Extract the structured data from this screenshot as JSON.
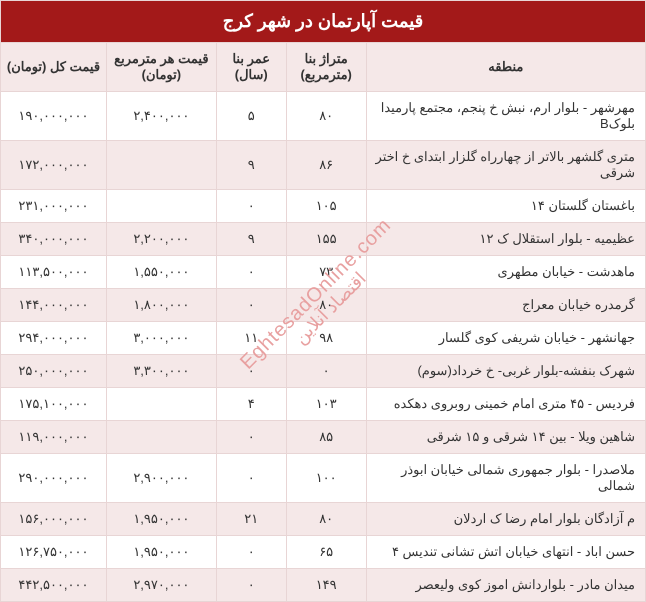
{
  "title": "قیمت آپارتمان در شهر کرج",
  "headers": {
    "region": "منطقه",
    "area": "متراژ بنا (مترمربع)",
    "age": "عمر بنا (سال)",
    "price_per_sqm": "قیمت هر مترمربع (تومان)",
    "total_price": "قیمت کل (تومان)"
  },
  "rows": [
    {
      "region": "مهرشهر - بلوار ارم، نبش خ پنجم، مجتمع پارمیدا بلوکB",
      "area": "۸۰",
      "age": "۵",
      "ppsm": "۲,۴۰۰,۰۰۰",
      "total": "۱۹۰,۰۰۰,۰۰۰"
    },
    {
      "region": "متری گلشهر بالاتر از چهارراه گلزار ابتدای خ اختر شرقی",
      "area": "۸۶",
      "age": "۹",
      "ppsm": "",
      "total": "۱۷۲,۰۰۰,۰۰۰"
    },
    {
      "region": "باغستان گلستان ۱۴",
      "area": "۱۰۵",
      "age": "۰",
      "ppsm": "",
      "total": "۲۳۱,۰۰۰,۰۰۰"
    },
    {
      "region": "عظیمیه - بلوار استقلال ک ۱۲",
      "area": "۱۵۵",
      "age": "۹",
      "ppsm": "۲,۲۰۰,۰۰۰",
      "total": "۳۴۰,۰۰۰,۰۰۰"
    },
    {
      "region": "ماهدشت - خیابان مطهری",
      "area": "۷۳",
      "age": "۰",
      "ppsm": "۱,۵۵۰,۰۰۰",
      "total": "۱۱۳,۵۰۰,۰۰۰"
    },
    {
      "region": "گرمدره خیابان معراج",
      "area": "۸۰",
      "age": "۰",
      "ppsm": "۱,۸۰۰,۰۰۰",
      "total": "۱۴۴,۰۰۰,۰۰۰"
    },
    {
      "region": "جهانشهر - خیابان شریفی کوی گلسار",
      "area": "۹۸",
      "age": "۱۱",
      "ppsm": "۳,۰۰۰,۰۰۰",
      "total": "۲۹۴,۰۰۰,۰۰۰"
    },
    {
      "region": "شهرک بنفشه-بلوار غربی- خ خرداد(سوم)",
      "area": "۰",
      "age": "۰",
      "ppsm": "۳,۳۰۰,۰۰۰",
      "total": "۲۵۰,۰۰۰,۰۰۰"
    },
    {
      "region": "فردیس - ۴۵ متری امام خمینی روبروی دهکده",
      "area": "۱۰۳",
      "age": "۴",
      "ppsm": "",
      "total": "۱۷۵,۱۰۰,۰۰۰"
    },
    {
      "region": "شاهین ویلا - بین ۱۴ شرقی و ۱۵ شرقی",
      "area": "۸۵",
      "age": "۰",
      "ppsm": "",
      "total": "۱۱۹,۰۰۰,۰۰۰"
    },
    {
      "region": "ملاصدرا - بلوار جمهوری شمالی خیابان ابوذر شمالی",
      "area": "۱۰۰",
      "age": "۰",
      "ppsm": "۲,۹۰۰,۰۰۰",
      "total": "۲۹۰,۰۰۰,۰۰۰"
    },
    {
      "region": "م آزادگان بلوار امام رضا ک اردلان",
      "area": "۸۰",
      "age": "۲۱",
      "ppsm": "۱,۹۵۰,۰۰۰",
      "total": "۱۵۶,۰۰۰,۰۰۰"
    },
    {
      "region": "حسن اباد - انتهای خیابان اتش تشانی تندیس ۴",
      "area": "۶۵",
      "age": "۰",
      "ppsm": "۱,۹۵۰,۰۰۰",
      "total": "۱۲۶,۷۵۰,۰۰۰"
    },
    {
      "region": "میدان مادر - بلواردانش اموز کوی ولیعصر",
      "area": "۱۴۹",
      "age": "۰",
      "ppsm": "۲,۹۷۰,۰۰۰",
      "total": "۴۴۲,۵۰۰,۰۰۰"
    }
  ],
  "watermark": {
    "en": "EghtesadOnline.com",
    "fa": "اقتصاد آنلاین"
  },
  "styling": {
    "title_bg": "#a31919",
    "header_bg": "#f5e8e8",
    "row_alt_bg": "#f5e8e8",
    "border_color": "#e8d5d5",
    "watermark_color": "#e8a0a0"
  }
}
